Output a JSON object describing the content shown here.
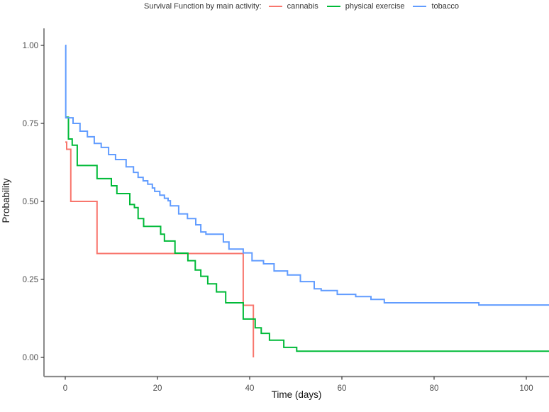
{
  "chart_data": {
    "type": "line",
    "subtype": "kaplan-meier-step-survival",
    "title": "Survival Function by main activity:",
    "xlabel": "Time (days)",
    "ylabel": "Probability",
    "x_ticks": [
      0,
      20,
      40,
      60,
      80,
      100
    ],
    "x_tick_labels": [
      "0",
      "20",
      "40",
      "60",
      "80",
      "100"
    ],
    "y_ticks": [
      0,
      0.25,
      0.5,
      0.75,
      1
    ],
    "y_tick_labels": [
      "0.00",
      "0.25",
      "0.50",
      "0.75",
      "1.00"
    ],
    "xlim": [
      -4.6,
      105
    ],
    "ylim": [
      0,
      1
    ],
    "grid": false,
    "legend_position": "top",
    "style": {
      "axis_line_x_color": "#8c8c8c",
      "axis_line_y_color": "#3d3d3d",
      "tick_color": "#333333",
      "tick_label_color": "#4d4d4d",
      "axis_title_color": "#111111",
      "background": "#ffffff"
    },
    "series": [
      {
        "name": "cannabis",
        "color": "#F8766D",
        "steps": [
          [
            0,
            0.69
          ],
          [
            0.3,
            0.667
          ],
          [
            1.2,
            0.5
          ],
          [
            6.9,
            0.333
          ],
          [
            38.6,
            0.167
          ],
          [
            40.8,
            0
          ]
        ]
      },
      {
        "name": "physical exercise",
        "color": "#00BA38",
        "steps": [
          [
            0,
            0.77
          ],
          [
            0.7,
            0.7
          ],
          [
            1.5,
            0.68
          ],
          [
            2.6,
            0.615
          ],
          [
            6.9,
            0.573
          ],
          [
            10,
            0.55
          ],
          [
            11.2,
            0.525
          ],
          [
            14,
            0.49
          ],
          [
            15,
            0.48
          ],
          [
            15.8,
            0.445
          ],
          [
            17,
            0.42
          ],
          [
            20.7,
            0.395
          ],
          [
            21.5,
            0.373
          ],
          [
            23.8,
            0.334
          ],
          [
            26.6,
            0.31
          ],
          [
            28.2,
            0.28
          ],
          [
            29.4,
            0.26
          ],
          [
            30.9,
            0.236
          ],
          [
            32.8,
            0.21
          ],
          [
            34.8,
            0.175
          ],
          [
            38.6,
            0.123
          ],
          [
            41.2,
            0.095
          ],
          [
            42.5,
            0.077
          ],
          [
            44.3,
            0.055
          ],
          [
            47.4,
            0.032
          ],
          [
            50.2,
            0.02
          ],
          [
            105,
            0.02
          ]
        ]
      },
      {
        "name": "tobacco",
        "color": "#619CFF",
        "steps": [
          [
            0,
            1.0
          ],
          [
            0.1,
            0.768
          ],
          [
            1.7,
            0.75
          ],
          [
            3.2,
            0.725
          ],
          [
            4.8,
            0.707
          ],
          [
            6.3,
            0.686
          ],
          [
            7.8,
            0.673
          ],
          [
            9.4,
            0.65
          ],
          [
            10.9,
            0.634
          ],
          [
            13.2,
            0.611
          ],
          [
            14.8,
            0.593
          ],
          [
            15.8,
            0.577
          ],
          [
            16.9,
            0.566
          ],
          [
            17.9,
            0.555
          ],
          [
            18.9,
            0.543
          ],
          [
            19.4,
            0.532
          ],
          [
            20.5,
            0.52
          ],
          [
            21.5,
            0.51
          ],
          [
            22.3,
            0.502
          ],
          [
            22.8,
            0.486
          ],
          [
            24.6,
            0.46
          ],
          [
            26.5,
            0.445
          ],
          [
            28.3,
            0.425
          ],
          [
            29.4,
            0.402
          ],
          [
            30.5,
            0.395
          ],
          [
            34.3,
            0.37
          ],
          [
            35.5,
            0.347
          ],
          [
            38.6,
            0.335
          ],
          [
            40.5,
            0.31
          ],
          [
            43,
            0.3
          ],
          [
            45.3,
            0.277
          ],
          [
            48.2,
            0.264
          ],
          [
            51,
            0.243
          ],
          [
            54,
            0.22
          ],
          [
            55.5,
            0.214
          ],
          [
            59,
            0.202
          ],
          [
            63,
            0.195
          ],
          [
            66.3,
            0.186
          ],
          [
            69.2,
            0.175
          ],
          [
            89.7,
            0.168
          ],
          [
            105,
            0.168
          ]
        ]
      }
    ]
  }
}
